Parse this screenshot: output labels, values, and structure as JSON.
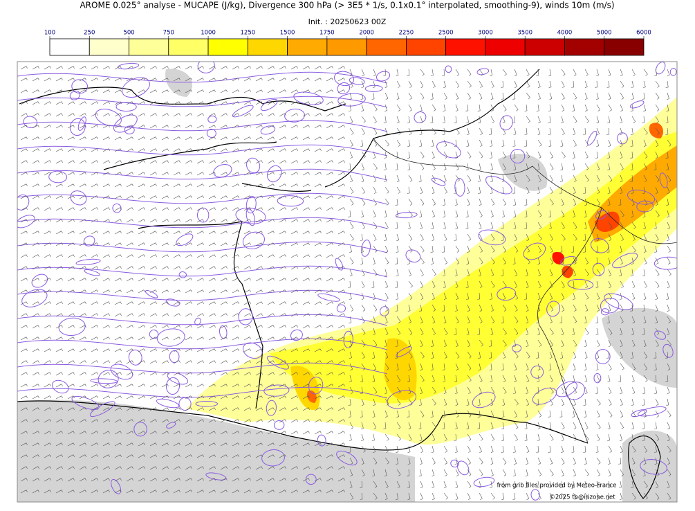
{
  "header": {
    "title": "AROME 0.025° analyse - MUCAPE (J/kg), Divergence 300 hPa (> 3E5 * 1/s, 0.1x0.1° interpolated, smoothing-9), winds 10m (m/s)",
    "init": "Init. : 20250623 00Z"
  },
  "colorbar": {
    "levels": [
      100,
      250,
      500,
      750,
      1000,
      1250,
      1500,
      1750,
      2000,
      2250,
      2500,
      3000,
      3500,
      4000,
      5000,
      6000
    ],
    "colors": [
      "#ffffff",
      "#ffffcc",
      "#ffff99",
      "#ffff66",
      "#ffff00",
      "#ffd700",
      "#ffaa00",
      "#ff9900",
      "#ff6600",
      "#ff4400",
      "#ff1100",
      "#ee0000",
      "#cc0000",
      "#a30000",
      "#880000",
      "#660000"
    ]
  },
  "credits": {
    "source": "from grib files provided by Meteo-France",
    "copyright": "©2025 tb@irizone.net"
  }
}
